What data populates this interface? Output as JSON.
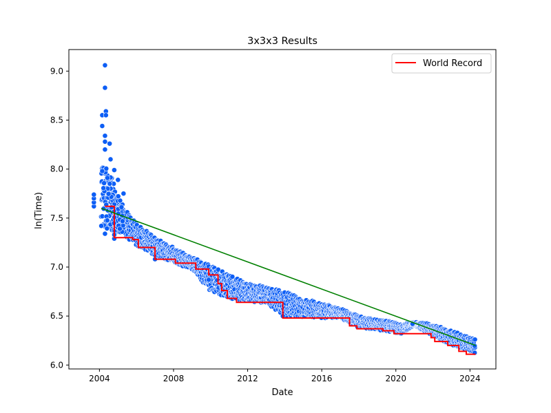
{
  "chart_data": {
    "type": "scatter",
    "title": "3x3x3 Results",
    "xlabel": "Date",
    "ylabel": "ln(Time)",
    "xlim": [
      2002.35,
      2025.4
    ],
    "ylim": [
      5.96,
      9.22
    ],
    "x_ticks": [
      2004,
      2008,
      2012,
      2016,
      2020,
      2024
    ],
    "y_ticks": [
      6.0,
      6.5,
      7.0,
      7.5,
      8.0,
      8.5,
      9.0
    ],
    "legend": {
      "position": "top-right",
      "entries": [
        {
          "label": "World Record",
          "color": "#ff0000"
        }
      ]
    },
    "scatter_color": "#0d5ef5",
    "world_record_color": "#ff0000",
    "trend_color": "#008000",
    "outlier_points": [
      {
        "x": 2003.7,
        "y": 7.62
      },
      {
        "x": 2003.7,
        "y": 7.66
      },
      {
        "x": 2003.7,
        "y": 7.7
      },
      {
        "x": 2003.7,
        "y": 7.74
      },
      {
        "x": 2004.1,
        "y": 7.42
      },
      {
        "x": 2004.15,
        "y": 7.98
      },
      {
        "x": 2004.15,
        "y": 8.44
      },
      {
        "x": 2004.15,
        "y": 8.55
      },
      {
        "x": 2004.3,
        "y": 9.06
      },
      {
        "x": 2004.3,
        "y": 8.83
      },
      {
        "x": 2004.35,
        "y": 8.59
      },
      {
        "x": 2004.35,
        "y": 8.55
      },
      {
        "x": 2004.3,
        "y": 8.34
      },
      {
        "x": 2004.3,
        "y": 8.28
      },
      {
        "x": 2004.3,
        "y": 8.2
      },
      {
        "x": 2004.55,
        "y": 8.26
      },
      {
        "x": 2004.3,
        "y": 7.34
      },
      {
        "x": 2004.6,
        "y": 8.1
      },
      {
        "x": 2004.8,
        "y": 7.99
      },
      {
        "x": 2004.8,
        "y": 7.29
      },
      {
        "x": 2004.8,
        "y": 7.33
      },
      {
        "x": 2005.0,
        "y": 7.89
      },
      {
        "x": 2005.1,
        "y": 7.39
      },
      {
        "x": 2005.3,
        "y": 7.75
      },
      {
        "x": 2007.0,
        "y": 7.08
      },
      {
        "x": 2009.9,
        "y": 6.87
      },
      {
        "x": 2013.9,
        "y": 6.5
      },
      {
        "x": 2020.9,
        "y": 6.42
      }
    ],
    "point_band": {
      "x": [
        2004.1,
        2005.0,
        2006.0,
        2007.0,
        2008.0,
        2009.0,
        2010.0,
        2011.0,
        2012.0,
        2013.0,
        2014.0,
        2015.0,
        2016.0,
        2017.0,
        2018.0,
        2019.0,
        2020.0,
        2020.3,
        2021.0,
        2022.0,
        2023.0,
        2024.3
      ],
      "upper": [
        8.1,
        7.7,
        7.45,
        7.3,
        7.2,
        7.1,
        7.02,
        6.92,
        6.83,
        6.8,
        6.75,
        6.68,
        6.63,
        6.58,
        6.5,
        6.46,
        6.44,
        6.42,
        6.44,
        6.42,
        6.35,
        6.26
      ],
      "lower": [
        7.4,
        7.35,
        7.22,
        7.12,
        7.04,
        6.98,
        6.75,
        6.68,
        6.64,
        6.63,
        6.5,
        6.49,
        6.48,
        6.48,
        6.38,
        6.36,
        6.33,
        6.32,
        6.4,
        6.3,
        6.2,
        6.12
      ]
    },
    "world_record": [
      {
        "x": 2004.3,
        "y": 7.62
      },
      {
        "x": 2004.8,
        "y": 7.3
      },
      {
        "x": 2005.8,
        "y": 7.28
      },
      {
        "x": 2006.1,
        "y": 7.2
      },
      {
        "x": 2007.0,
        "y": 7.08
      },
      {
        "x": 2008.1,
        "y": 7.04
      },
      {
        "x": 2009.2,
        "y": 6.98
      },
      {
        "x": 2009.9,
        "y": 6.92
      },
      {
        "x": 2010.4,
        "y": 6.83
      },
      {
        "x": 2010.6,
        "y": 6.76
      },
      {
        "x": 2010.9,
        "y": 6.68
      },
      {
        "x": 2011.4,
        "y": 6.64
      },
      {
        "x": 2013.9,
        "y": 6.48
      },
      {
        "x": 2017.5,
        "y": 6.4
      },
      {
        "x": 2017.9,
        "y": 6.37
      },
      {
        "x": 2019.3,
        "y": 6.35
      },
      {
        "x": 2019.9,
        "y": 6.32
      },
      {
        "x": 2021.9,
        "y": 6.28
      },
      {
        "x": 2022.1,
        "y": 6.24
      },
      {
        "x": 2022.8,
        "y": 6.2
      },
      {
        "x": 2023.4,
        "y": 6.14
      },
      {
        "x": 2023.8,
        "y": 6.11
      },
      {
        "x": 2024.3,
        "y": 6.11
      }
    ],
    "trend": [
      {
        "x": 2004.1,
        "y": 7.6
      },
      {
        "x": 2024.3,
        "y": 6.2
      }
    ]
  }
}
